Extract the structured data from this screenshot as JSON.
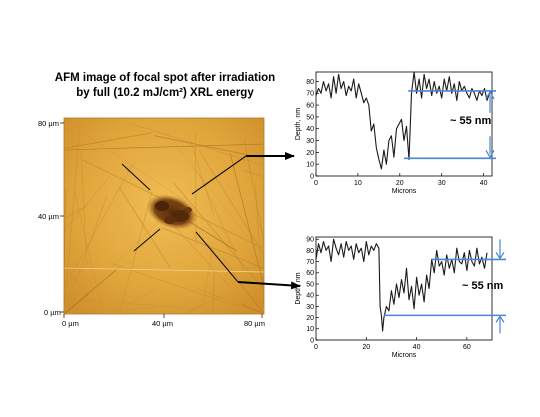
{
  "title": {
    "line1": "AFM image of focal spot after irradiation",
    "line2": "by full (10.2 mJ/cm²) XRL energy"
  },
  "afm_image": {
    "y_ticks": [
      "80 µm",
      "40 µm",
      "0 µm"
    ],
    "x_ticks": [
      "0 µm",
      "40 µm",
      "80 µm"
    ]
  },
  "colors": {
    "afm_base": "#e0a63c",
    "crater": "#6e3a10",
    "profile_line": "#1a1a1a",
    "marker": "#4a86d6"
  },
  "annotations": {
    "top": "~ 55 nm",
    "bottom": "~ 55 nm"
  },
  "chart_data": [
    {
      "type": "line",
      "title": "",
      "xlabel": "Microns",
      "ylabel": "Depth, nm",
      "xlim": [
        0,
        42
      ],
      "ylim": [
        0,
        88
      ],
      "x_ticks": [
        0,
        10,
        20,
        30,
        40
      ],
      "y_ticks": [
        0,
        10,
        20,
        30,
        40,
        50,
        60,
        70,
        80
      ],
      "reference_levels": [
        72,
        15
      ],
      "series": [
        {
          "x": [
            0,
            0.6,
            1.2,
            1.8,
            2.4,
            3,
            3.6,
            4.2,
            4.8,
            5.4,
            6,
            6.6,
            7.2,
            7.8,
            8.4,
            9,
            9.6,
            10.2,
            10.8,
            11.4,
            12,
            12.6,
            13.2,
            13.8,
            14.4,
            15,
            15.6,
            16.2,
            16.8,
            17.4,
            18,
            18.6,
            19.2,
            19.8,
            20.4,
            21,
            21.6,
            22.2,
            22.8,
            23.4,
            24,
            24.6,
            25.2,
            25.8,
            26.4,
            27,
            27.6,
            28.2,
            28.8,
            29.4,
            30,
            30.6,
            31.2,
            31.8,
            32.4,
            33,
            33.6,
            34.2,
            34.8,
            35.4,
            36,
            36.6,
            37.2,
            37.8,
            38.4,
            39,
            39.6,
            40.2,
            40.8,
            41.4,
            42
          ],
          "y": [
            68,
            74,
            70,
            80,
            72,
            78,
            66,
            84,
            70,
            86,
            74,
            80,
            68,
            76,
            72,
            82,
            66,
            78,
            70,
            62,
            66,
            60,
            38,
            44,
            24,
            14,
            6,
            22,
            10,
            30,
            34,
            16,
            40,
            44,
            48,
            30,
            42,
            14,
            70,
            88,
            70,
            82,
            66,
            86,
            74,
            82,
            68,
            80,
            70,
            76,
            66,
            82,
            72,
            84,
            70,
            78,
            64,
            80,
            72,
            76,
            70,
            66,
            74,
            70,
            64,
            72,
            68,
            74,
            64,
            70,
            72
          ]
        }
      ]
    },
    {
      "type": "line",
      "title": "",
      "xlabel": "Microns",
      "ylabel": "Depth, nm",
      "xlim": [
        0,
        70
      ],
      "ylim": [
        0,
        92
      ],
      "x_ticks": [
        0,
        20,
        40,
        60
      ],
      "y_ticks": [
        0,
        10,
        20,
        30,
        40,
        50,
        60,
        70,
        80,
        90
      ],
      "reference_levels": [
        72,
        22
      ],
      "series": [
        {
          "x": [
            0,
            1,
            2,
            3,
            4,
            5,
            6,
            7,
            8,
            9,
            10,
            11,
            12,
            13,
            14,
            15,
            16,
            17,
            18,
            19,
            20,
            21,
            22,
            23,
            24,
            25,
            25.5,
            26,
            26.5,
            27,
            28,
            29,
            30,
            31,
            32,
            33,
            34,
            35,
            36,
            37,
            38,
            39,
            40,
            41,
            42,
            43,
            44,
            45,
            46,
            47,
            48,
            49,
            50,
            51,
            52,
            53,
            54,
            55,
            56,
            57,
            58,
            59,
            60,
            61,
            62,
            63,
            64,
            65,
            66,
            67,
            68
          ],
          "y": [
            72,
            86,
            78,
            88,
            80,
            84,
            70,
            90,
            82,
            76,
            86,
            74,
            88,
            80,
            84,
            72,
            86,
            78,
            82,
            70,
            88,
            76,
            84,
            80,
            86,
            82,
            30,
            22,
            8,
            20,
            30,
            26,
            44,
            32,
            50,
            38,
            54,
            42,
            64,
            36,
            48,
            28,
            56,
            40,
            50,
            34,
            58,
            46,
            72,
            60,
            80,
            66,
            70,
            58,
            76,
            64,
            72,
            60,
            82,
            70,
            68,
            78,
            62,
            80,
            70,
            66,
            82,
            68,
            74,
            64,
            78
          ]
        }
      ]
    }
  ]
}
